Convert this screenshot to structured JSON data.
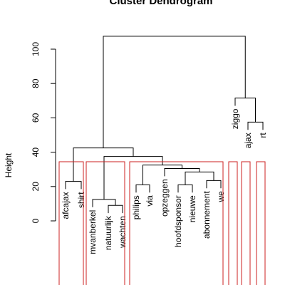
{
  "chart_data": {
    "type": "dendrogram",
    "title": "Cluster Dendrogram",
    "ylabel": "Height",
    "ylim": [
      0,
      110
    ],
    "yticks": [
      0,
      20,
      40,
      60,
      80,
      100
    ],
    "leaves": [
      "afcajax",
      "shirt",
      "mvanberkel",
      "natuurlijk",
      "wachten",
      "philips",
      "via",
      "opzeggen",
      "hoofdsponsor",
      "nieuwe",
      "abonnement",
      "we",
      "ziggo",
      "ajax",
      "rt"
    ],
    "merges": [
      {
        "left": "L0",
        "right": "L1",
        "height": 23
      },
      {
        "left": "L3",
        "right": "L4",
        "height": 9
      },
      {
        "left": "L2",
        "right": "M1",
        "height": 12.5
      },
      {
        "left": "L5",
        "right": "L6",
        "height": 21
      },
      {
        "left": "L8",
        "right": "L9",
        "height": 21
      },
      {
        "left": "L10",
        "right": "L11",
        "height": 23.5
      },
      {
        "left": "M4",
        "right": "M5",
        "height": 28.5
      },
      {
        "left": "L7",
        "right": "M6",
        "height": 30.5
      },
      {
        "left": "M3",
        "right": "M7",
        "height": 32.5
      },
      {
        "left": "M2",
        "right": "M8",
        "height": 37.5
      },
      {
        "left": "M0",
        "right": "M9",
        "height": 42.5
      },
      {
        "left": "L13",
        "right": "L14",
        "height": 57.5
      },
      {
        "left": "L12",
        "right": "M11",
        "height": 71.5
      },
      {
        "left": "M10",
        "right": "M12",
        "height": 107.5
      }
    ],
    "cluster_boxes": [
      {
        "from": 0,
        "to": 1
      },
      {
        "from": 2,
        "to": 4
      },
      {
        "from": 5,
        "to": 11
      },
      {
        "from": 12,
        "to": 12
      },
      {
        "from": 13,
        "to": 13
      },
      {
        "from": 14,
        "to": 14
      }
    ],
    "colors": {
      "branch": "#000000",
      "cluster_box": "#cc2222"
    }
  }
}
